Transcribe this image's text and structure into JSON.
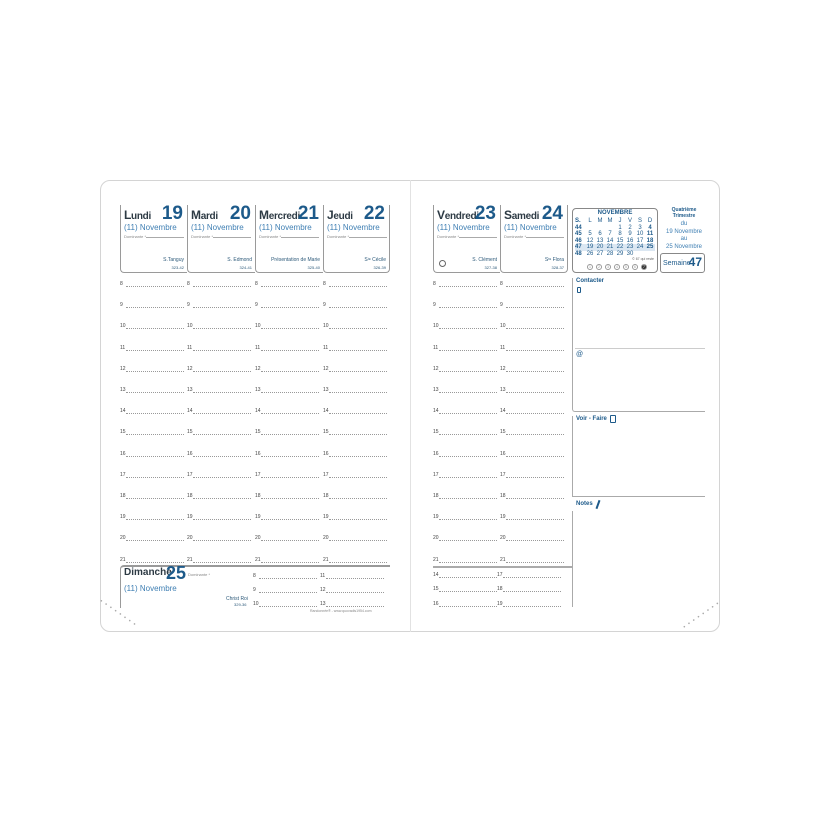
{
  "left_days": [
    {
      "name": "Lundi",
      "number": "19",
      "month": "(11) Novembre",
      "dominante": "Dominante *",
      "saint": "S.Tanguy",
      "code": "323-42"
    },
    {
      "name": "Mardi",
      "number": "20",
      "month": "(11) Novembre",
      "dominante": "Dominante *",
      "saint": "S. Edmond",
      "code": "324-41"
    },
    {
      "name": "Mercredi",
      "number": "21",
      "month": "(11) Novembre",
      "dominante": "Dominante *",
      "saint": "Présentation de Marie",
      "code": "325-40"
    },
    {
      "name": "Jeudi",
      "number": "22",
      "month": "(11) Novembre",
      "dominante": "Dominante *",
      "saint": "Sᵗᵉ Cécile",
      "code": "326-39"
    }
  ],
  "right_days": [
    {
      "name": "Vendredi",
      "number": "23",
      "month": "(11) Novembre",
      "dominante": "Dominante *",
      "saint": "S. Clément",
      "code": "327-38"
    },
    {
      "name": "Samedi",
      "number": "24",
      "month": "(11) Novembre",
      "dominante": "Dominante *",
      "saint": "Sᵗᵉ Flora",
      "code": "328-37"
    }
  ],
  "hours": [
    "8",
    "9",
    "10",
    "11",
    "12",
    "13",
    "14",
    "15",
    "16",
    "17",
    "18",
    "19",
    "20",
    "21"
  ],
  "sunday": {
    "name": "Dimanche",
    "number": "25",
    "month": "(11) Novembre",
    "dominante": "Dominante *",
    "saint": "Christ Roi",
    "code": "329-36",
    "hours_col1": [
      "8",
      "9",
      "10"
    ],
    "hours_col2": [
      "11",
      "12",
      "13"
    ]
  },
  "saturday_extra": {
    "col1": [
      "14",
      "15",
      "16"
    ],
    "col2": [
      "17",
      "18",
      "19"
    ]
  },
  "footer": "Randonnée® - www.quovadis1954.com",
  "mini_calendar": {
    "title": "NOVEMBRE",
    "headers": [
      "S.",
      "L",
      "M",
      "M",
      "J",
      "V",
      "S",
      "D"
    ],
    "weeks": [
      [
        "44",
        "",
        "",
        "",
        "1",
        "2",
        "3",
        "4"
      ],
      [
        "45",
        "5",
        "6",
        "7",
        "8",
        "9",
        "10",
        "11"
      ],
      [
        "46",
        "12",
        "13",
        "14",
        "15",
        "16",
        "17",
        "18"
      ],
      [
        "47",
        "19",
        "20",
        "21",
        "22",
        "23",
        "24",
        "25"
      ],
      [
        "48",
        "26",
        "27",
        "28",
        "29",
        "30",
        "",
        ""
      ]
    ],
    "highlight_week": "47",
    "remaining": "© 67 qui reste",
    "circles": [
      "1",
      "2",
      "3",
      "4",
      "5",
      "6",
      "7"
    ]
  },
  "quarter": {
    "title": "Quatrième Trimestre",
    "du": "du",
    "from": "19 Novembre",
    "au": "au",
    "to": "25 Novembre",
    "week_label": "Semaine",
    "week_number": "47"
  },
  "panels": {
    "contact": "Contacter",
    "email_symbol": "@",
    "todo": "Voir - Faire",
    "notes": "Notes"
  },
  "colors": {
    "accent": "#1d5a8a",
    "month": "#3f7fb3",
    "text": "#2d3a44"
  }
}
